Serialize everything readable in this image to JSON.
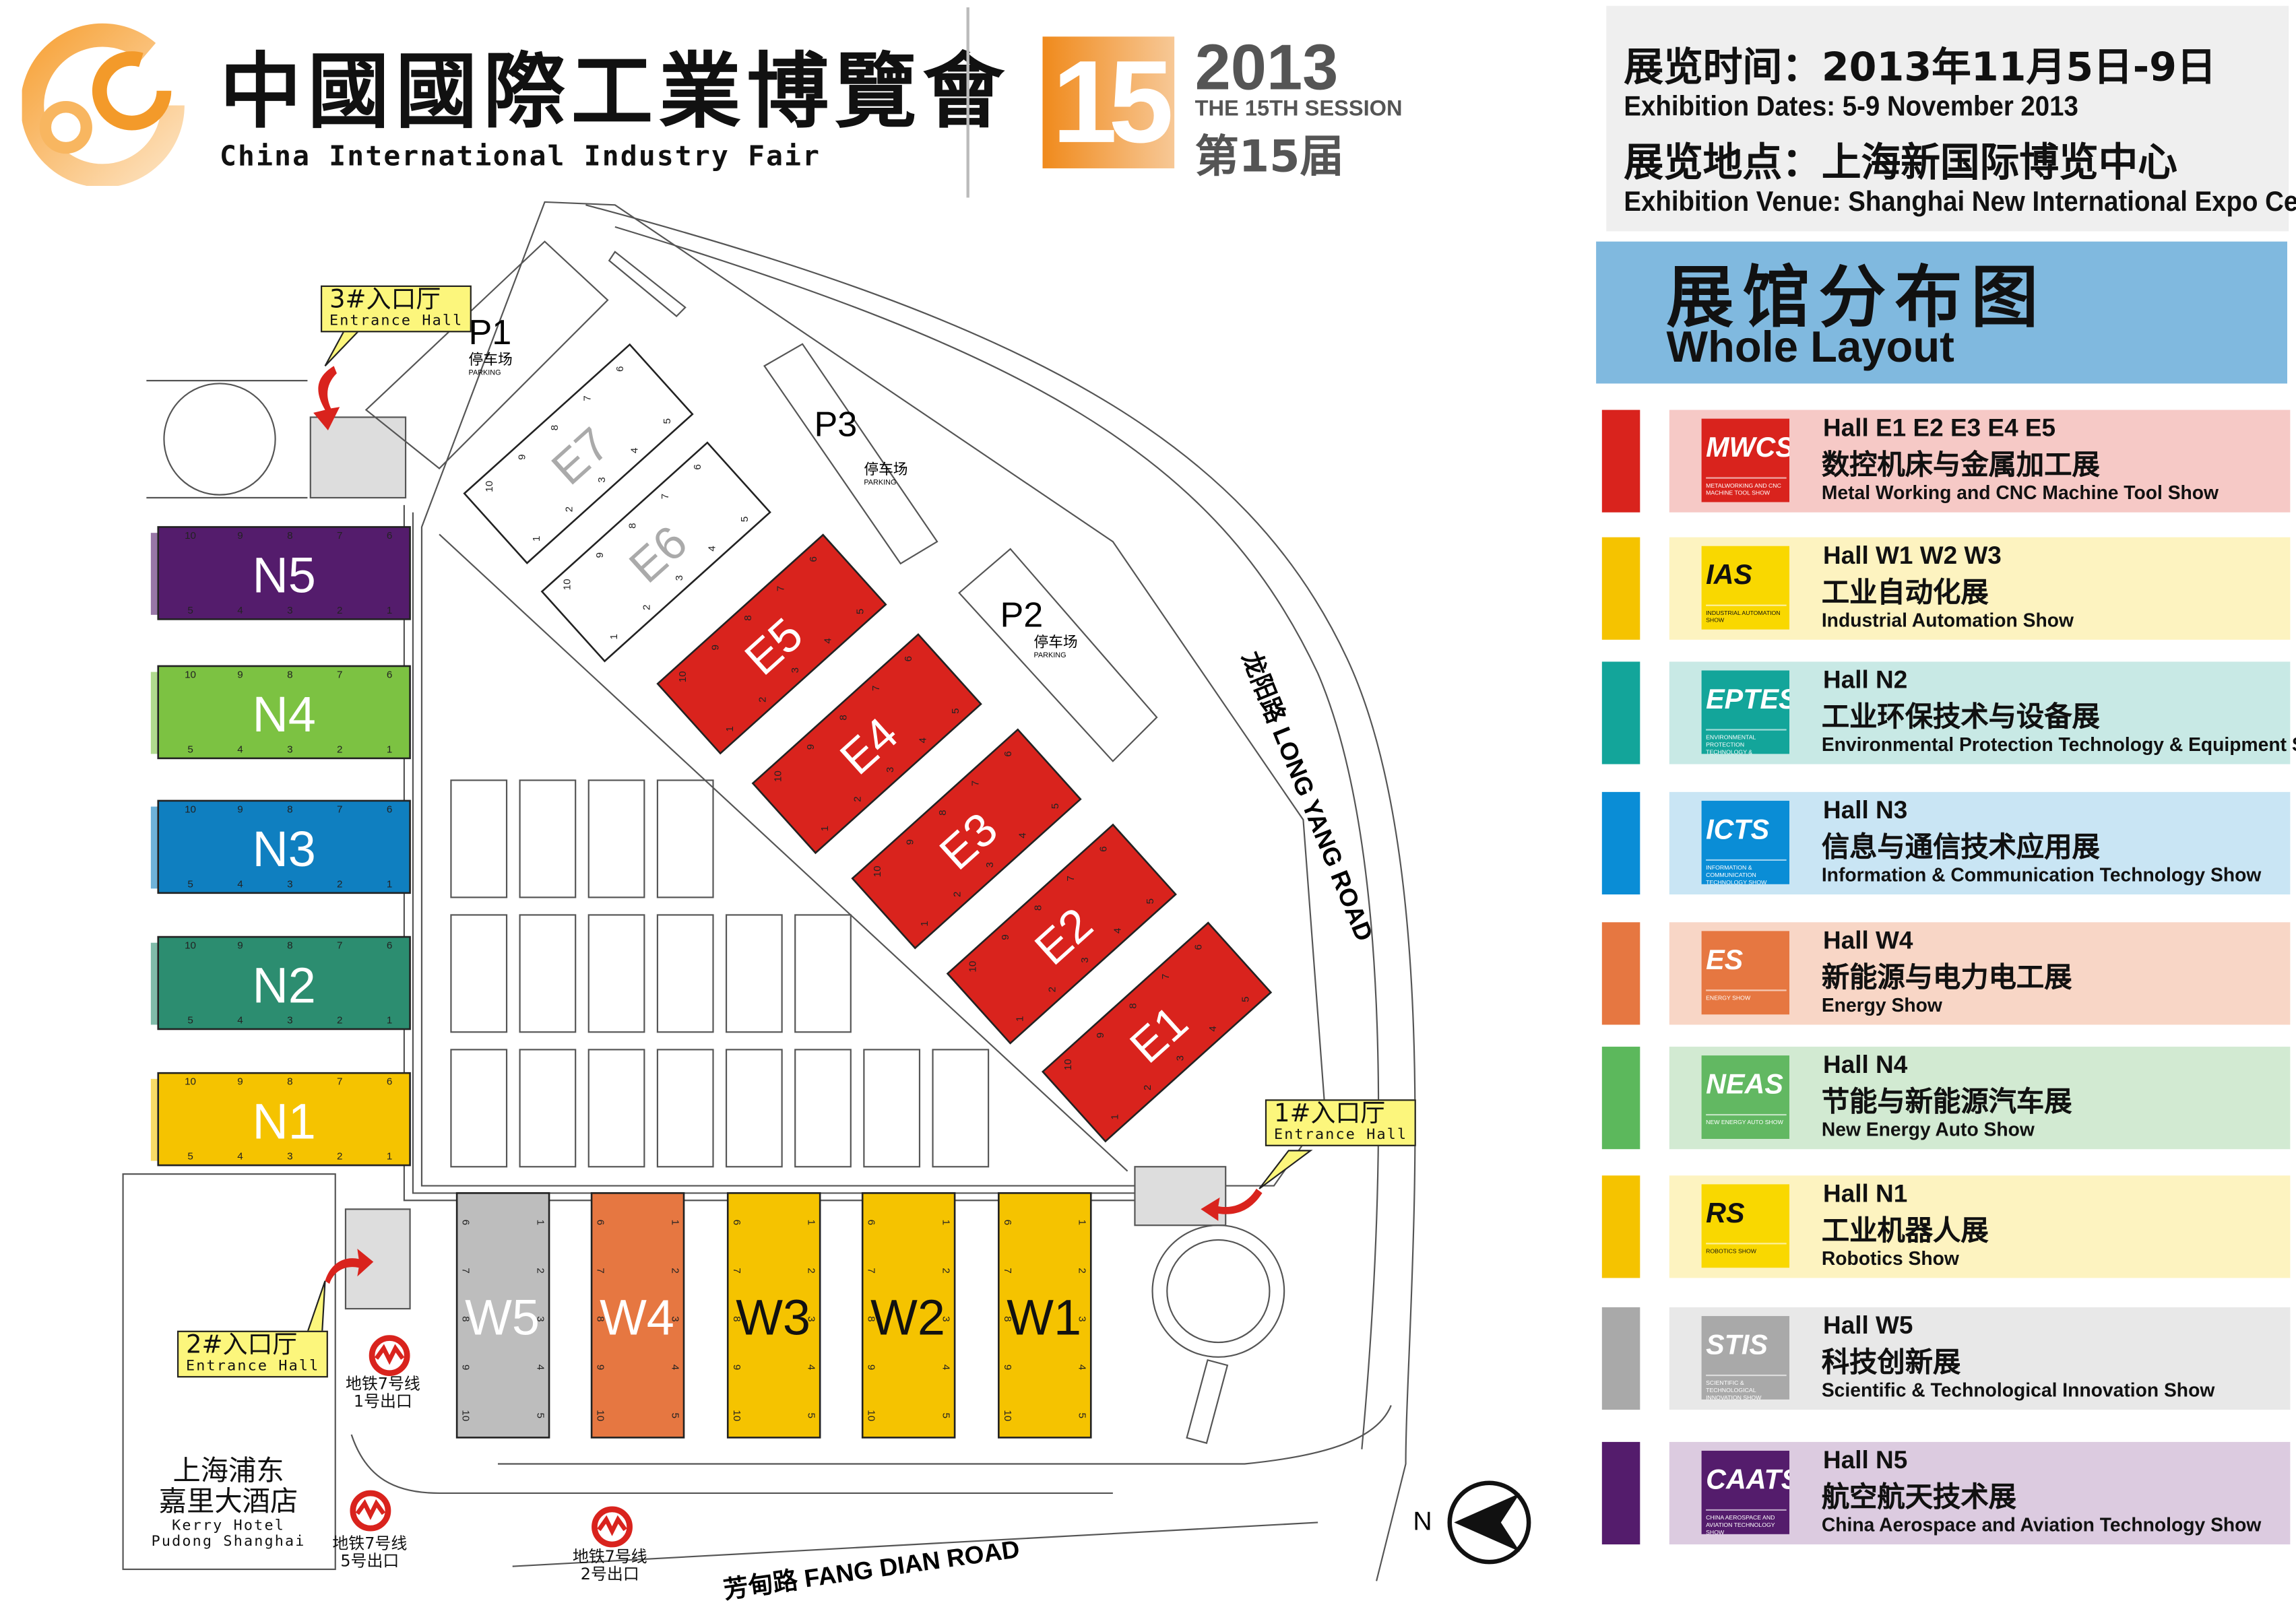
{
  "header": {
    "logo_icon": "orange-swirl-gear-logo",
    "title_cn": "中國國際工業博覽會",
    "title_en": "China International Industry Fair",
    "session_badge": "15",
    "year": "2013",
    "session_en": "THE 15TH SESSION",
    "session_cn": "第15届"
  },
  "info": {
    "dates_cn": "展览时间：2013年11月5日-9日",
    "dates_en": "Exhibition Dates:   5-9 November 2013",
    "venue_cn": "展览地点：上海新国际博览中心",
    "venue_en": "Exhibition Venue:   Shanghai New International Expo Centre"
  },
  "layout_title": {
    "cn": "展馆分布图",
    "en": "Whole Layout"
  },
  "legend": [
    {
      "logo": "MWCS",
      "logo_sub": "METALWORKING AND CNC MACHINE TOOL SHOW",
      "hall": "Hall  E1 E2 E3 E4 E5",
      "cn": "数控机床与金属加工展",
      "en": "Metal Working and CNC Machine Tool  Show",
      "bar": "#d9231d",
      "panel": "#f6c9c6",
      "logo_bg": "#d9231d"
    },
    {
      "logo": "IAS",
      "logo_sub": "INDUSTRIAL AUTOMATION SHOW",
      "hall": "Hall  W1 W2 W3",
      "cn": "工业自动化展",
      "en": "Industrial Automation Show",
      "bar": "#f5c300",
      "panel": "#fdf3c0",
      "logo_bg": "#f9d800"
    },
    {
      "logo": "EPTES",
      "logo_sub": "ENVIRONMENTAL PROTECTION TECHNOLOGY & EQUIPMENT SHOW",
      "hall": "Hall  N2",
      "cn": "工业环保技术与设备展",
      "en": "Environmental Protection Technology & Equipment Show",
      "bar": "#13a59a",
      "panel": "#c8e9e5",
      "logo_bg": "#13a59a"
    },
    {
      "logo": "ICTS",
      "logo_sub": "INFORMATION & COMMUNICATION TECHNOLOGY SHOW",
      "hall": "Hall  N3",
      "cn": "信息与通信技术应用展",
      "en": "Information & Communication Technology Show",
      "bar": "#0a8dd6",
      "panel": "#c9e5f4",
      "logo_bg": "#0a8dd6"
    },
    {
      "logo": "ES",
      "logo_sub": "ENERGY SHOW",
      "hall": "Hall  W4",
      "cn": "新能源与电力电工展",
      "en": "Energy Show",
      "bar": "#e67741",
      "panel": "#f8d6c6",
      "logo_bg": "#e67741"
    },
    {
      "logo": "NEAS",
      "logo_sub": "NEW ENERGY AUTO SHOW",
      "hall": "Hall  N4",
      "cn": "节能与新能源汽车展",
      "en": "New Energy Auto Show",
      "bar": "#5cb85c",
      "panel": "#d2ead2",
      "logo_bg": "#62b862"
    },
    {
      "logo": "RS",
      "logo_sub": "ROBOTICS SHOW",
      "hall": "Hall  N1",
      "cn": "工业机器人展",
      "en": "Robotics  Show",
      "bar": "#f5c300",
      "panel": "#fdf3c0",
      "logo_bg": "#f9d800"
    },
    {
      "logo": "STIS",
      "logo_sub": "SCIENTIFIC & TECHNOLOGICAL INNOVATION SHOW",
      "hall": "Hall  W5",
      "cn": "科技创新展",
      "en": "Scientific & Technological Innovation Show",
      "bar": "#a9a9a9",
      "panel": "#e8e8e8",
      "logo_bg": "#a9a9a9"
    },
    {
      "logo": "CAATS",
      "logo_sub": "CHINA AEROSPACE AND AVIATION TECHNOLOGY SHOW",
      "hall": "Hall  N5",
      "cn": "航空航天技术展",
      "en": "China Aerospace and Aviation Technology  Show",
      "bar": "#541c6c",
      "panel": "#dccbe0",
      "logo_bg": "#541c6c"
    }
  ],
  "map": {
    "halls_e": [
      {
        "name": "E1",
        "color": "#d9231d"
      },
      {
        "name": "E2",
        "color": "#d9231d"
      },
      {
        "name": "E3",
        "color": "#d9231d"
      },
      {
        "name": "E4",
        "color": "#d9231d"
      },
      {
        "name": "E5",
        "color": "#d9231d"
      },
      {
        "name": "E6",
        "color": "#ffffff"
      },
      {
        "name": "E7",
        "color": "#ffffff"
      }
    ],
    "halls_n": [
      {
        "name": "N5",
        "color": "#541c6c"
      },
      {
        "name": "N4",
        "color": "#7cc242"
      },
      {
        "name": "N3",
        "color": "#0f7fc0"
      },
      {
        "name": "N2",
        "color": "#2c8d70"
      },
      {
        "name": "N1",
        "color": "#f5c300"
      }
    ],
    "halls_w": [
      {
        "name": "W5",
        "color": "#bdbdbd"
      },
      {
        "name": "W4",
        "color": "#e67741"
      },
      {
        "name": "W3",
        "color": "#f5c300"
      },
      {
        "name": "W2",
        "color": "#f5c300"
      },
      {
        "name": "W1",
        "color": "#f5c300"
      }
    ],
    "parking": [
      {
        "name": "P1",
        "cn": "停车场",
        "en": "PARKING"
      },
      {
        "name": "P2",
        "cn": "停车场",
        "en": "PARKING"
      },
      {
        "name": "P3",
        "cn": "停车场",
        "en": "PARKING"
      }
    ],
    "entrances": [
      {
        "cn": "3#入口厅",
        "en": "Entrance Hall"
      },
      {
        "cn": "1#入口厅",
        "en": "Entrance Hall"
      },
      {
        "cn": "2#入口厅",
        "en": "Entrance Hall"
      }
    ],
    "metro": [
      {
        "line": "地铁7号线",
        "exit": "1号出口"
      },
      {
        "line": "地铁7号线",
        "exit": "5号出口"
      },
      {
        "line": "地铁7号线",
        "exit": "2号出口"
      }
    ],
    "hotel": {
      "cn1": "上海浦东",
      "cn2": "嘉里大酒店",
      "en1": "Kerry  Hotel",
      "en2": "Pudong  Shanghai"
    },
    "roads": {
      "long_yang": "龙阳路 LONG YANG ROAD",
      "fang_dian": "芳甸路 FANG DIAN ROAD"
    },
    "compass": "N",
    "metro_icon": "shanghai-metro-logo",
    "compass_icon": "north-arrow"
  }
}
